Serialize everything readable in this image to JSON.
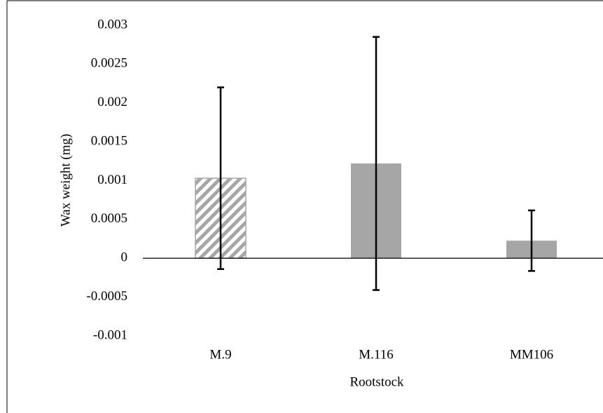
{
  "chart_data": {
    "type": "bar",
    "x_label": "Rootstock",
    "y_label": "Wax weight (mg)",
    "categories": [
      "M.9",
      "M.116",
      "MM106"
    ],
    "values": [
      0.00103,
      0.00122,
      0.000226
    ],
    "errors": [
      0.00117,
      0.00163,
      0.00039
    ],
    "hatched": [
      true,
      false,
      false
    ],
    "color": "#a6a6a6",
    "ylim": [
      -0.001,
      0.003
    ],
    "yticks": [
      -0.001,
      -0.0005,
      0,
      0.0005,
      0.001,
      0.0015,
      0.002,
      0.0025,
      0.003
    ]
  }
}
